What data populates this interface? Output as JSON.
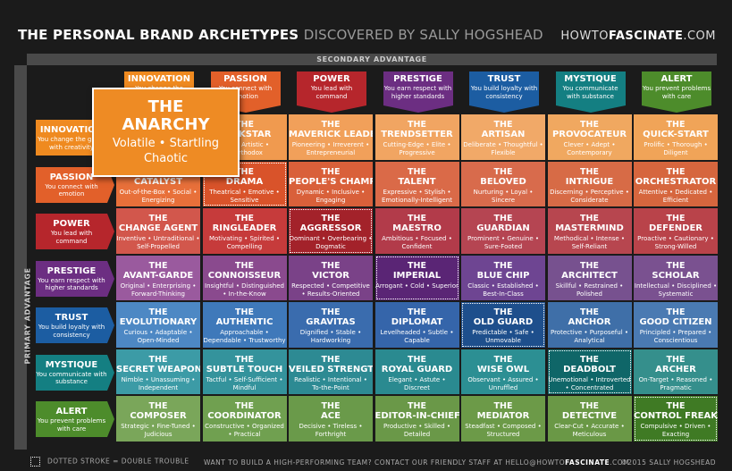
{
  "header": {
    "title_bold": "THE PERSONAL BRAND ARCHETYPES",
    "title_light": "DISCOVERED BY SALLY HOGSHEAD",
    "site_prefix": "HOWTO",
    "site_bold": "FASCINATE",
    "site_suffix": ".COM"
  },
  "secondary_label": "SECONDARY ADVANTAGE",
  "primary_label": "PRIMARY ADVANTAGE",
  "columns": [
    {
      "name": "INNOVATION",
      "desc": "You change the",
      "color": "#ef8a20"
    },
    {
      "name": "PASSION",
      "desc": "You connect with emotion",
      "color": "#e2602a"
    },
    {
      "name": "POWER",
      "desc": "You lead with command",
      "color": "#b6262c"
    },
    {
      "name": "PRESTIGE",
      "desc": "You earn respect with higher standards",
      "color": "#6c2e82"
    },
    {
      "name": "TRUST",
      "desc": "You build loyalty with consistency",
      "color": "#1c5da2"
    },
    {
      "name": "MYSTIQUE",
      "desc": "You communicate with substance",
      "color": "#147f82"
    },
    {
      "name": "ALERT",
      "desc": "You prevent problems with care",
      "color": "#4d8c2b"
    }
  ],
  "rows": [
    {
      "name": "INNOVATION",
      "desc": "You change the game with creativity",
      "color": "#ef8a20"
    },
    {
      "name": "PASSION",
      "desc": "You connect with emotion",
      "color": "#e2602a"
    },
    {
      "name": "POWER",
      "desc": "You lead with command",
      "color": "#b6262c"
    },
    {
      "name": "PRESTIGE",
      "desc": "You earn respect with higher standards",
      "color": "#6c2e82"
    },
    {
      "name": "TRUST",
      "desc": "You build loyalty with consistency",
      "color": "#1c5da2"
    },
    {
      "name": "MYSTIQUE",
      "desc": "You communicate with substance",
      "color": "#147f82"
    },
    {
      "name": "ALERT",
      "desc": "You prevent problems with care",
      "color": "#4d8c2b"
    }
  ],
  "anarchy": {
    "the": "THE",
    "name": "ANARCHY",
    "line1": "Volatile • Startling",
    "line2": "Chaotic"
  },
  "grid": [
    [
      {
        "the": "",
        "name": "",
        "desc": ""
      },
      {
        "the": "THE",
        "name": "ROCKSTAR",
        "desc": "Bold • Artistic • Unorthodox"
      },
      {
        "the": "THE",
        "name": "MAVERICK LEADER",
        "desc": "Pioneering • Irreverent • Entrepreneurial"
      },
      {
        "the": "THE",
        "name": "TRENDSETTER",
        "desc": "Cutting-Edge • Elite • Progressive"
      },
      {
        "the": "THE",
        "name": "ARTISAN",
        "desc": "Deliberate • Thoughtful • Flexible"
      },
      {
        "the": "THE",
        "name": "PROVOCATEUR",
        "desc": "Clever • Adept • Contemporary"
      },
      {
        "the": "THE",
        "name": "QUICK-START",
        "desc": "Prolific • Thorough • Diligent"
      }
    ],
    [
      {
        "the": "THE",
        "name": "CATALYST",
        "desc": "Out-of-the-Box • Social • Energizing"
      },
      {
        "the": "THE",
        "name": "DRAMA",
        "desc": "Theatrical • Emotive • Sensitive"
      },
      {
        "the": "THE",
        "name": "PEOPLE'S CHAMPION",
        "desc": "Dynamic • Inclusive • Engaging"
      },
      {
        "the": "THE",
        "name": "TALENT",
        "desc": "Expressive • Stylish • Emotionally-Intelligent"
      },
      {
        "the": "THE",
        "name": "BELOVED",
        "desc": "Nurturing • Loyal • Sincere"
      },
      {
        "the": "THE",
        "name": "INTRIGUE",
        "desc": "Discerning • Perceptive • Considerate"
      },
      {
        "the": "THE",
        "name": "ORCHESTRATOR",
        "desc": "Attentive • Dedicated • Efficient"
      }
    ],
    [
      {
        "the": "THE",
        "name": "CHANGE AGENT",
        "desc": "Inventive • Untraditional • Self-Propelled"
      },
      {
        "the": "THE",
        "name": "RINGLEADER",
        "desc": "Motivating • Spirited • Compelling"
      },
      {
        "the": "THE",
        "name": "AGGRESSOR",
        "desc": "Dominant • Overbearing • Dogmatic"
      },
      {
        "the": "THE",
        "name": "MAESTRO",
        "desc": "Ambitious • Focused • Confident"
      },
      {
        "the": "THE",
        "name": "GUARDIAN",
        "desc": "Prominent • Genuine • Sure-Footed"
      },
      {
        "the": "THE",
        "name": "MASTERMIND",
        "desc": "Methodical • Intense • Self-Reliant"
      },
      {
        "the": "THE",
        "name": "DEFENDER",
        "desc": "Proactive • Cautionary • Strong-Willed"
      }
    ],
    [
      {
        "the": "THE",
        "name": "AVANT-GARDE",
        "desc": "Original • Enterprising • Forward-Thinking"
      },
      {
        "the": "THE",
        "name": "CONNOISSEUR",
        "desc": "Insightful • Distinguished • In-the-Know"
      },
      {
        "the": "THE",
        "name": "VICTOR",
        "desc": "Respected • Competitive • Results-Oriented"
      },
      {
        "the": "THE",
        "name": "IMPERIAL",
        "desc": "Arrogant • Cold • Superior"
      },
      {
        "the": "THE",
        "name": "BLUE CHIP",
        "desc": "Classic • Established • Best-In-Class"
      },
      {
        "the": "THE",
        "name": "ARCHITECT",
        "desc": "Skillful • Restrained • Polished"
      },
      {
        "the": "THE",
        "name": "SCHOLAR",
        "desc": "Intellectual • Disciplined • Systematic"
      }
    ],
    [
      {
        "the": "THE",
        "name": "EVOLUTIONARY",
        "desc": "Curious • Adaptable • Open-Minded"
      },
      {
        "the": "THE",
        "name": "AUTHENTIC",
        "desc": "Approachable • Dependable • Trustworthy"
      },
      {
        "the": "THE",
        "name": "GRAVITAS",
        "desc": "Dignified • Stable • Hardworking"
      },
      {
        "the": "THE",
        "name": "DIPLOMAT",
        "desc": "Levelheaded • Subtle • Capable"
      },
      {
        "the": "THE",
        "name": "OLD GUARD",
        "desc": "Predictable • Safe • Unmovable"
      },
      {
        "the": "THE",
        "name": "ANCHOR",
        "desc": "Protective • Purposeful • Analytical"
      },
      {
        "the": "THE",
        "name": "GOOD CITIZEN",
        "desc": "Principled • Prepared • Conscientious"
      }
    ],
    [
      {
        "the": "THE",
        "name": "SECRET WEAPON",
        "desc": "Nimble • Unassuming • Independent"
      },
      {
        "the": "THE",
        "name": "SUBTLE TOUCH",
        "desc": "Tactful • Self-Sufficient • Mindful"
      },
      {
        "the": "THE",
        "name": "VEILED STRENGTH",
        "desc": "Realistic • Intentional • To-the-Point"
      },
      {
        "the": "THE",
        "name": "ROYAL GUARD",
        "desc": "Elegant • Astute • Discreet"
      },
      {
        "the": "THE",
        "name": "WISE OWL",
        "desc": "Observant • Assured • Unruffled"
      },
      {
        "the": "THE",
        "name": "DEADBOLT",
        "desc": "Unemotional • Introverted • Concentrated"
      },
      {
        "the": "THE",
        "name": "ARCHER",
        "desc": "On-Target • Reasoned • Pragmatic"
      }
    ],
    [
      {
        "the": "THE",
        "name": "COMPOSER",
        "desc": "Strategic • Fine-Tuned • Judicious"
      },
      {
        "the": "THE",
        "name": "COORDINATOR",
        "desc": "Constructive • Organized • Practical"
      },
      {
        "the": "THE",
        "name": "ACE",
        "desc": "Decisive • Tireless • Forthright"
      },
      {
        "the": "THE",
        "name": "EDITOR-IN-CHIEF",
        "desc": "Productive • Skilled • Detailed"
      },
      {
        "the": "THE",
        "name": "MEDIATOR",
        "desc": "Steadfast • Composed • Structured"
      },
      {
        "the": "THE",
        "name": "DETECTIVE",
        "desc": "Clear-Cut • Accurate • Meticulous"
      },
      {
        "the": "THE",
        "name": "CONTROL FREAK",
        "desc": "Compulsive • Driven • Exacting"
      }
    ]
  ],
  "cell_colors": [
    [
      "#f29a3c",
      "#f09a4f",
      "#f1a05a",
      "#f1a562",
      "#f1a968",
      "#f0a860",
      "#f0a458"
    ],
    [
      "#e8703a",
      "#d9532a",
      "#d9603a",
      "#da6a48",
      "#d86b4c",
      "#d76b46",
      "#d6663e"
    ],
    [
      "#d2574c",
      "#c63b3b",
      "#a3222a",
      "#b23b4a",
      "#b54552",
      "#b7464f",
      "#b9434a"
    ],
    [
      "#9a5a9e",
      "#8a4a8e",
      "#7a4288",
      "#5a2575",
      "#6e4592",
      "#77518f",
      "#7a5190"
    ],
    [
      "#4d88c4",
      "#3f79ba",
      "#3a6cae",
      "#3565aa",
      "#1e4f8c",
      "#3f6fa8",
      "#4a7ab2"
    ],
    [
      "#3c9ba6",
      "#34939c",
      "#2d8a93",
      "#2a8a90",
      "#2c8f93",
      "#0f6668",
      "#358f8c"
    ],
    [
      "#7aa65a",
      "#70a050",
      "#6a9a4a",
      "#6a9848",
      "#6c9a48",
      "#6a9846",
      "#3f7a24"
    ]
  ],
  "dotted_cells": [
    [
      1,
      1
    ],
    [
      2,
      2
    ],
    [
      3,
      3
    ],
    [
      4,
      4
    ],
    [
      5,
      5
    ],
    [
      6,
      6
    ]
  ],
  "footer": {
    "legend": "DOTTED STROKE = DOUBLE TROUBLE",
    "cta_prefix": "WANT TO BUILD A HIGH-PERFORMING TEAM? CONTACT OUR FRIENDLY STAFF AT HELLO@HOWTO",
    "cta_bold": "FASCINATE",
    "cta_suffix": ".COM",
    "copyright": "©2015 SALLY HOGSHEAD"
  }
}
